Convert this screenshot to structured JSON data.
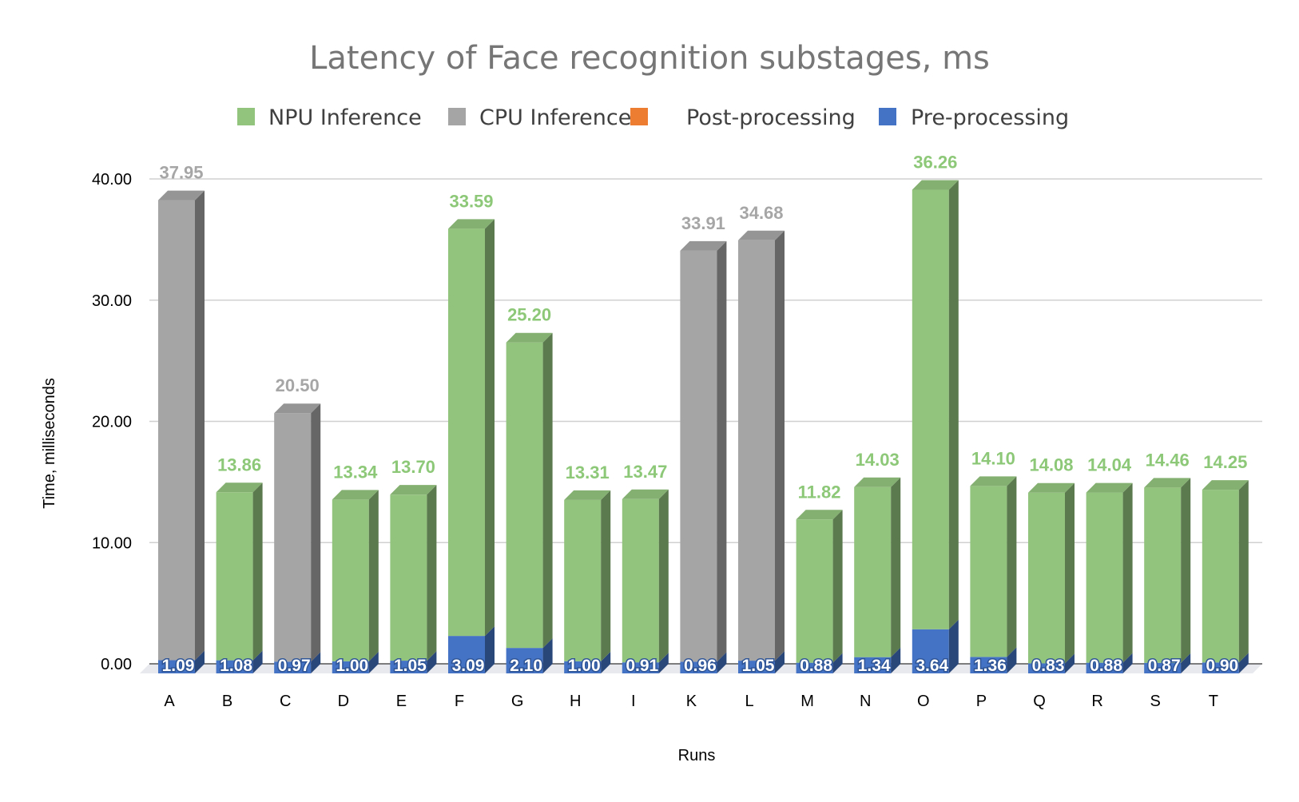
{
  "chart_data": {
    "type": "bar",
    "stacked": true,
    "three_d": true,
    "title": "Latency of Face recognition substages, ms",
    "xlabel": "Runs",
    "ylabel": "Time, milliseconds",
    "ylim": [
      0,
      40
    ],
    "yticks": [
      "0.00",
      "10.00",
      "20.00",
      "30.00",
      "40.00"
    ],
    "grid": true,
    "legend_position": "top",
    "categories": [
      "A",
      "B",
      "C",
      "D",
      "E",
      "F",
      "G",
      "H",
      "I",
      "K",
      "L",
      "M",
      "N",
      "O",
      "P",
      "Q",
      "R",
      "S",
      "T"
    ],
    "series": [
      {
        "name": "NPU Inference",
        "color": "#93c47d",
        "label_color": "#8dc878",
        "values": [
          null,
          13.86,
          null,
          13.34,
          13.7,
          33.59,
          25.2,
          13.31,
          13.47,
          null,
          null,
          11.82,
          14.03,
          36.26,
          14.1,
          14.08,
          14.04,
          14.46,
          14.25
        ],
        "labels": [
          "",
          "13.86",
          "",
          "13.34",
          "13.70",
          "33.59",
          "25.20",
          "13.31",
          "13.47",
          "",
          "",
          "11.82",
          "14.03",
          "36.26",
          "14.10",
          "14.08",
          "14.04",
          "14.46",
          "14.25"
        ]
      },
      {
        "name": "CPU Inference",
        "color": "#a5a5a5",
        "label_color": "#a6a6a6",
        "values": [
          37.95,
          null,
          20.5,
          null,
          null,
          null,
          null,
          null,
          null,
          33.91,
          34.68,
          null,
          null,
          null,
          null,
          null,
          null,
          null,
          null
        ],
        "labels": [
          "37.95",
          "",
          "20.50",
          "",
          "",
          "",
          "",
          "",
          "",
          "33.91",
          "34.68",
          "",
          "",
          "",
          "",
          "",
          "",
          "",
          ""
        ]
      },
      {
        "name": "Post-processing",
        "color": "#ed7d31",
        "values": [
          null,
          null,
          null,
          null,
          null,
          null,
          null,
          null,
          null,
          null,
          null,
          null,
          null,
          null,
          null,
          null,
          null,
          null,
          null
        ]
      },
      {
        "name": "Pre-processing",
        "color": "#4472c4",
        "values": [
          1.09,
          1.08,
          0.97,
          1.0,
          1.05,
          3.09,
          2.1,
          1.0,
          0.91,
          0.96,
          1.05,
          0.88,
          1.34,
          3.64,
          1.36,
          0.83,
          0.88,
          0.87,
          0.9
        ],
        "labels": [
          "1.09",
          "1.08",
          "0.97",
          "1.00",
          "1.05",
          "3.09",
          "2.10",
          "1.00",
          "0.91",
          "0.96",
          "1.05",
          "0.88",
          "1.34",
          "3.64",
          "1.36",
          "0.83",
          "0.88",
          "0.87",
          "0.90"
        ]
      }
    ]
  }
}
